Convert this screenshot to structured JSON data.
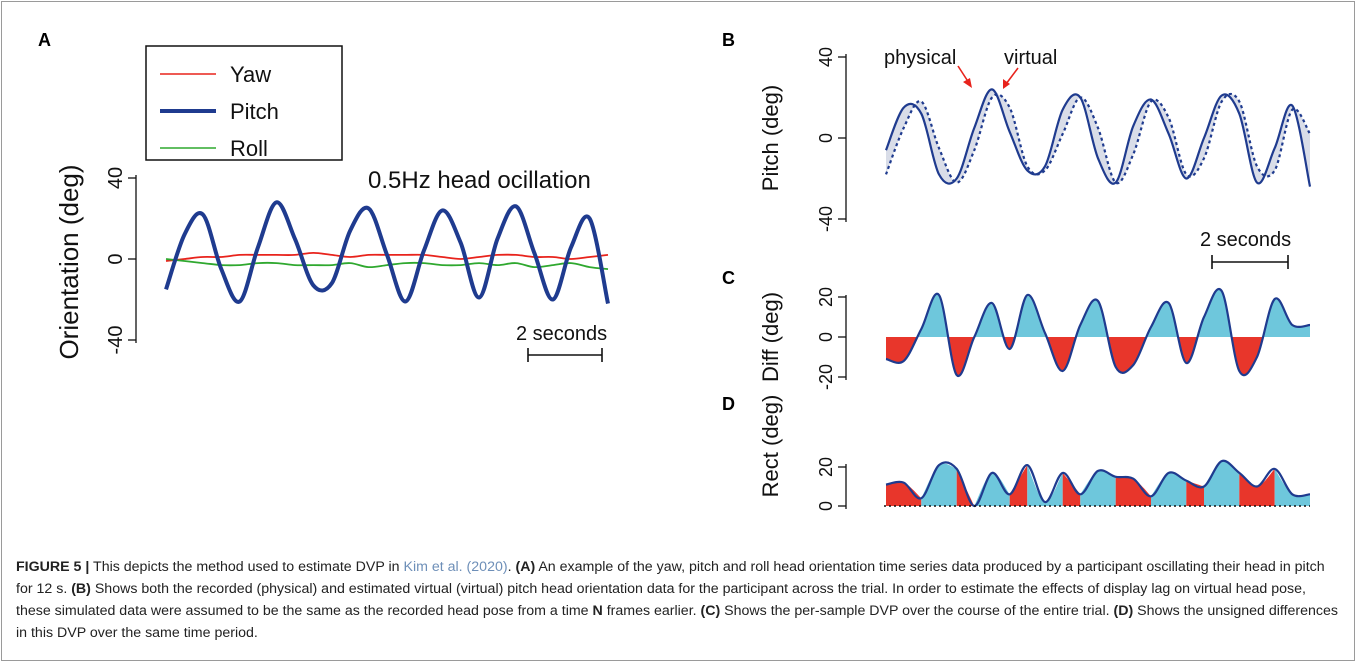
{
  "colors": {
    "yaw": "#e8231c",
    "pitch": "#1f3b8f",
    "roll": "#2fa82f",
    "diff_pos": "#6ec7dc",
    "diff_neg": "#e8362b",
    "gap_fill": "#d9dde8",
    "caption_link": "#6e8fb8"
  },
  "chart_data": [
    {
      "panel": "A",
      "type": "line",
      "ylabel": "Orientation (deg)",
      "ylim": [
        -45,
        45
      ],
      "yticks": [
        "40",
        "0",
        "-40"
      ],
      "annotation": "0.5Hz head ocillation",
      "scalebar_label": "2 seconds",
      "legend_position": "top-left",
      "x": [
        0,
        0.5,
        1,
        1.5,
        2,
        2.5,
        3,
        3.5,
        4,
        4.5,
        5,
        5.5,
        6,
        6.5,
        7,
        7.5,
        8,
        8.5,
        9,
        9.5,
        10,
        10.5,
        11,
        11.5,
        12
      ],
      "series": [
        {
          "name": "Yaw",
          "values": [
            -1,
            0,
            1,
            1,
            2,
            2,
            2,
            2,
            3,
            2,
            1,
            2,
            2,
            2,
            2,
            1,
            0,
            1,
            2,
            2,
            1,
            1,
            0,
            1,
            2
          ]
        },
        {
          "name": "Pitch",
          "values": [
            -15,
            12,
            22,
            -5,
            -21,
            6,
            28,
            10,
            -13,
            -12,
            14,
            25,
            2,
            -21,
            4,
            24,
            8,
            -19,
            10,
            26,
            3,
            -20,
            6,
            20,
            -22
          ]
        },
        {
          "name": "Roll",
          "values": [
            0,
            -1,
            -2,
            -3,
            -3,
            -2,
            -2,
            -3,
            -3,
            -3,
            -2,
            -4,
            -3,
            -2,
            -2,
            -3,
            -3,
            -2,
            -3,
            -2,
            -4,
            -3,
            -2,
            -4,
            -5
          ]
        }
      ]
    },
    {
      "panel": "B",
      "type": "line",
      "ylabel": "Pitch (deg)",
      "ylim": [
        -45,
        45
      ],
      "yticks": [
        "40",
        "0",
        "-40"
      ],
      "scalebar_label": "2 seconds",
      "arrow_labels": [
        "physical",
        "virtual"
      ],
      "x": [
        0,
        0.5,
        1,
        1.5,
        2,
        2.5,
        3,
        3.5,
        4,
        4.5,
        5,
        5.5,
        6,
        6.5,
        7,
        7.5,
        8,
        8.5,
        9,
        9.5,
        10,
        10.5,
        11,
        11.5,
        12
      ],
      "series": [
        {
          "name": "physical",
          "values": [
            -6,
            15,
            12,
            -18,
            -20,
            5,
            24,
            3,
            -16,
            -14,
            14,
            20,
            -10,
            -22,
            6,
            19,
            2,
            -20,
            0,
            21,
            12,
            -22,
            -5,
            16,
            -24
          ]
        },
        {
          "name": "virtual",
          "values": [
            -18,
            5,
            18,
            -5,
            -22,
            -6,
            20,
            15,
            -14,
            -16,
            2,
            20,
            5,
            -22,
            -8,
            18,
            10,
            -18,
            -10,
            18,
            18,
            -14,
            -16,
            14,
            2
          ]
        }
      ]
    },
    {
      "panel": "C",
      "type": "area",
      "ylabel": "Diff (deg)",
      "ylim": [
        -25,
        25
      ],
      "yticks": [
        "20",
        "0",
        "-20"
      ],
      "x": [
        0,
        0.5,
        1,
        1.5,
        2,
        2.5,
        3,
        3.5,
        4,
        4.5,
        5,
        5.5,
        6,
        6.5,
        7,
        7.5,
        8,
        8.5,
        9,
        9.5,
        10,
        10.5,
        11,
        11.5,
        12
      ],
      "values": [
        -11,
        -12,
        4,
        21,
        -19,
        0,
        17,
        -6,
        21,
        2,
        -17,
        6,
        18,
        -15,
        -14,
        5,
        17,
        -13,
        10,
        23,
        -17,
        -10,
        19,
        6,
        6
      ]
    },
    {
      "panel": "D",
      "type": "area",
      "ylabel": "Rect (deg)",
      "ylim": [
        0,
        25
      ],
      "yticks": [
        "20",
        "0"
      ],
      "x": [
        0,
        0.5,
        1,
        1.5,
        2,
        2.5,
        3,
        3.5,
        4,
        4.5,
        5,
        5.5,
        6,
        6.5,
        7,
        7.5,
        8,
        8.5,
        9,
        9.5,
        10,
        10.5,
        11,
        11.5,
        12
      ],
      "values": [
        11,
        12,
        4,
        21,
        19,
        0,
        17,
        6,
        21,
        2,
        17,
        6,
        18,
        15,
        14,
        5,
        17,
        13,
        10,
        23,
        17,
        10,
        19,
        6,
        6
      ],
      "sign": [
        -1,
        -1,
        1,
        1,
        -1,
        1,
        1,
        -1,
        1,
        1,
        -1,
        1,
        1,
        -1,
        -1,
        1,
        1,
        -1,
        1,
        1,
        -1,
        -1,
        1,
        1,
        1
      ]
    }
  ],
  "caption": {
    "figure_label": "FIGURE 5 |",
    "intro": " This depicts the method used to estimate DVP in ",
    "cite": "Kim et al. (2020)",
    "after_cite": ". ",
    "a_label": "(A)",
    "a_text": " An example of the yaw, pitch and roll head orientation time series data produced by a participant oscillating their head in pitch for 12 s. ",
    "b_label": "(B)",
    "b_text": " Shows both the recorded (physical) and estimated virtual (virtual) pitch head orientation data for the participant across the trial. In order to estimate the effects of display lag on virtual head pose, these simulated data were assumed to be the same as the recorded head pose from a time ",
    "n_label": "N",
    "n_text": " frames earlier. ",
    "c_label": "(C)",
    "c_text": " Shows the per-sample DVP over the course of the entire trial. ",
    "d_label": "(D)",
    "d_text": " Shows the unsigned differences in this DVP over the same time period."
  }
}
